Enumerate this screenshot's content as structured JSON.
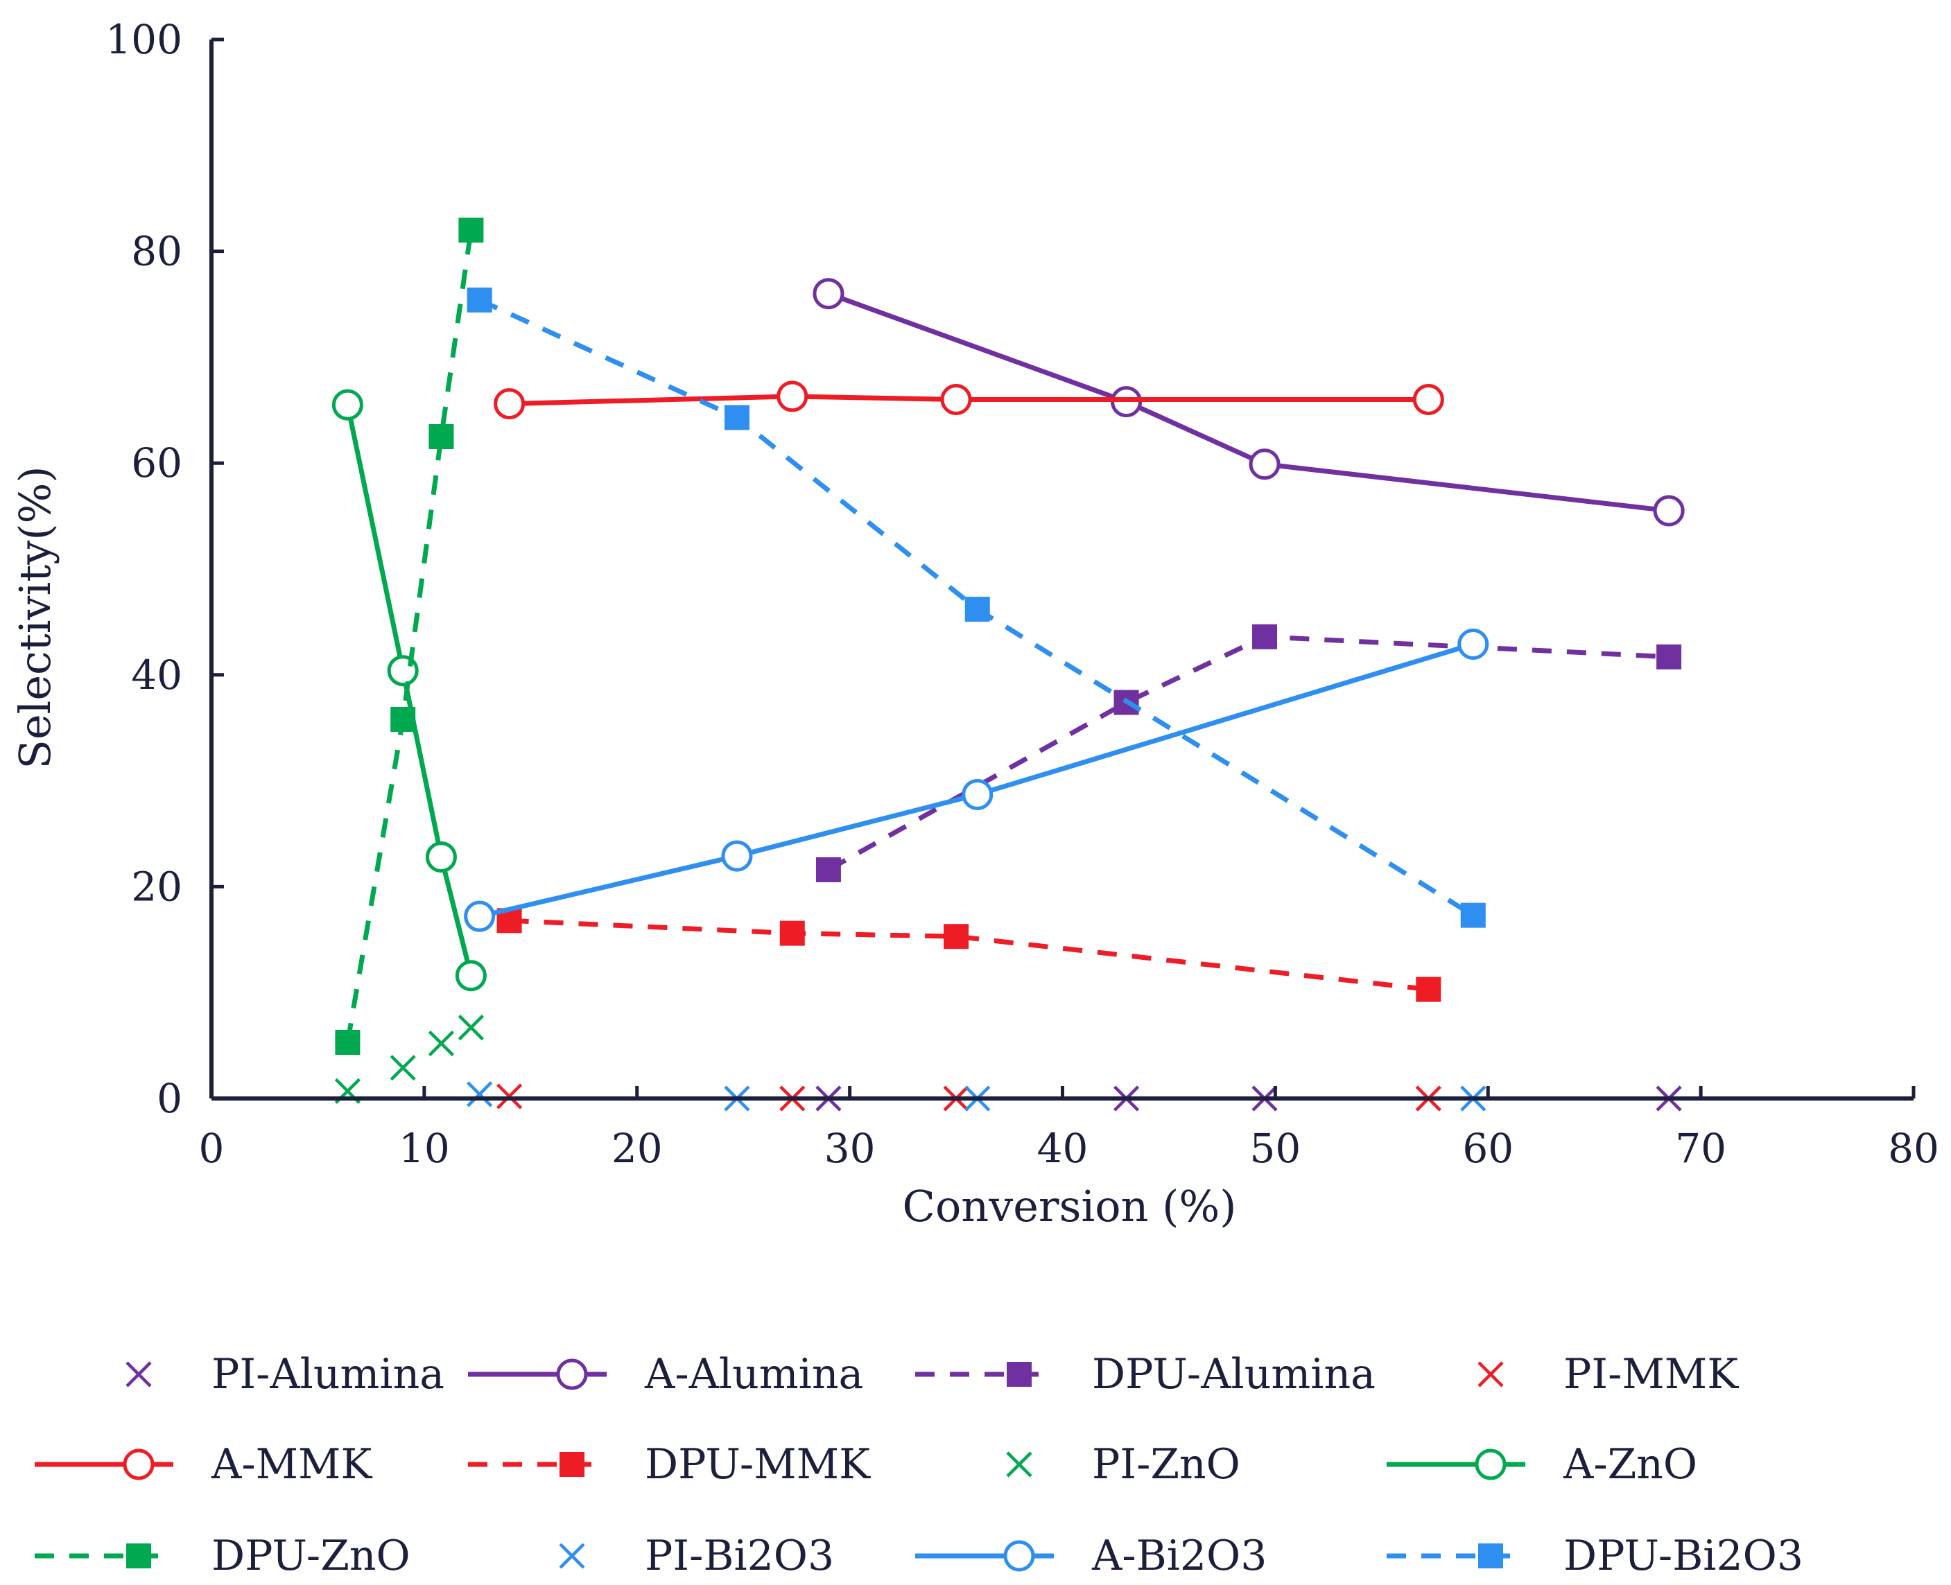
{
  "chart_data": {
    "type": "scatter",
    "title": "",
    "xlabel": "Conversion (%)",
    "ylabel": "Selectivity(%)",
    "xlim": [
      0,
      80
    ],
    "ylim": [
      0,
      100
    ],
    "xticks": [
      "0",
      "10",
      "20",
      "30",
      "40",
      "50",
      "60",
      "70",
      "80"
    ],
    "yticks": [
      "0",
      "20",
      "40",
      "60",
      "80",
      "100"
    ],
    "legend_position": "bottom",
    "colors": {
      "alumina": "#7030a0",
      "mmk": "#ee1c25",
      "zno": "#00a94f",
      "bi2o3": "#2e8ff0",
      "axis": "#1b1f3b"
    },
    "series": [
      {
        "name": "PI-Alumina",
        "color": "#7030a0",
        "marker": "x",
        "line": "none",
        "x": [
          29,
          43,
          49.5,
          68.5
        ],
        "y": [
          0,
          0,
          0,
          0
        ]
      },
      {
        "name": "A-Alumina",
        "color": "#7030a0",
        "marker": "circle",
        "line": "solid",
        "x": [
          29,
          43,
          49.5,
          68.5
        ],
        "y": [
          76,
          65.8,
          59.9,
          55.5
        ]
      },
      {
        "name": "DPU-Alumina",
        "color": "#7030a0",
        "marker": "square",
        "line": "dashed",
        "x": [
          29,
          43,
          49.5,
          68.5
        ],
        "y": [
          21.6,
          37.4,
          43.6,
          41.7
        ]
      },
      {
        "name": "PI-MMK",
        "color": "#ee1c25",
        "marker": "x",
        "line": "none",
        "x": [
          14,
          27.3,
          35,
          57.2
        ],
        "y": [
          0.2,
          0,
          0,
          0
        ]
      },
      {
        "name": "A-MMK",
        "color": "#ee1c25",
        "marker": "circle",
        "line": "solid",
        "x": [
          14,
          27.3,
          35,
          57.2
        ],
        "y": [
          65.6,
          66.3,
          66,
          66
        ]
      },
      {
        "name": "DPU-MMK",
        "color": "#ee1c25",
        "marker": "square",
        "line": "dashed",
        "x": [
          14,
          27.3,
          35,
          57.2
        ],
        "y": [
          16.8,
          15.6,
          15.3,
          10.3
        ]
      },
      {
        "name": "PI-ZnO",
        "color": "#00a94f",
        "marker": "x",
        "line": "none",
        "x": [
          6.4,
          9,
          10.8,
          12.2
        ],
        "y": [
          0.7,
          2.9,
          5.2,
          6.7
        ]
      },
      {
        "name": "A-ZnO",
        "color": "#00a94f",
        "marker": "circle",
        "line": "solid",
        "x": [
          6.4,
          9,
          10.8,
          12.2
        ],
        "y": [
          65.5,
          40.4,
          22.8,
          11.6
        ]
      },
      {
        "name": "DPU-ZnO",
        "color": "#00a94f",
        "marker": "square",
        "line": "dashed",
        "x": [
          6.4,
          9,
          10.8,
          12.2
        ],
        "y": [
          5.3,
          35.8,
          62.5,
          82
        ]
      },
      {
        "name": "PI-Bi2O3",
        "color": "#2e8ff0",
        "marker": "x",
        "line": "none",
        "x": [
          12.6,
          24.7,
          36,
          59.3
        ],
        "y": [
          0.4,
          0,
          0,
          0
        ]
      },
      {
        "name": "A-Bi2O3",
        "color": "#2e8ff0",
        "marker": "circle",
        "line": "solid",
        "x": [
          12.6,
          24.7,
          36,
          59.3
        ],
        "y": [
          17.2,
          22.9,
          28.7,
          42.9
        ]
      },
      {
        "name": "DPU-Bi2O3",
        "color": "#2e8ff0",
        "marker": "square",
        "line": "dashed",
        "x": [
          12.6,
          24.7,
          36,
          59.3
        ],
        "y": [
          75.4,
          64.3,
          46.2,
          17.3
        ]
      }
    ]
  }
}
